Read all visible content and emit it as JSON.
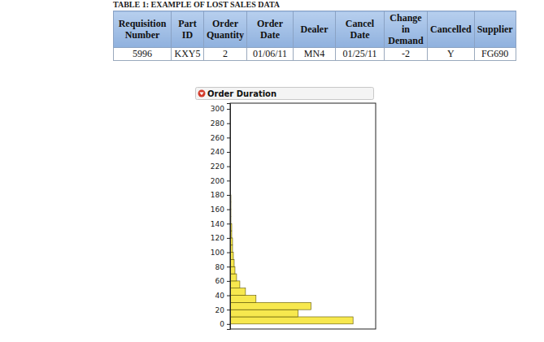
{
  "chart_data": {
    "type": "histogram",
    "title": "Order Duration",
    "orientation": "horizontal",
    "bins": [
      0,
      10,
      20,
      30,
      40,
      50,
      60,
      70,
      80,
      90,
      100,
      110,
      120,
      130,
      140,
      150,
      160,
      170,
      180
    ],
    "counts": [
      152,
      84,
      100,
      32,
      19,
      12,
      8,
      6,
      5,
      4,
      3,
      3,
      2,
      2,
      1,
      1,
      1,
      1
    ],
    "color": "#f7e84e",
    "xlim": [
      0,
      180
    ],
    "ylim": [
      -7,
      308
    ],
    "yticks": [
      0,
      20,
      40,
      60,
      80,
      100,
      120,
      140,
      160,
      180,
      200,
      220,
      240,
      260,
      280,
      300
    ],
    "tick_labels": "y"
  },
  "table": {
    "title": "TABLE 1: EXAMPLE OF LOST SALES DATA",
    "columns": [
      "Requisition Number",
      "Part ID",
      "Order Quantity",
      "Order Date",
      "Dealer",
      "Cancel Date",
      "Change in Demand",
      "Cancelled",
      "Supplier"
    ],
    "rows": [
      [
        5996,
        "KXY5",
        2,
        "01/06/11",
        "MN4",
        "01/25/11",
        -2,
        "Y",
        "FG690"
      ]
    ]
  }
}
